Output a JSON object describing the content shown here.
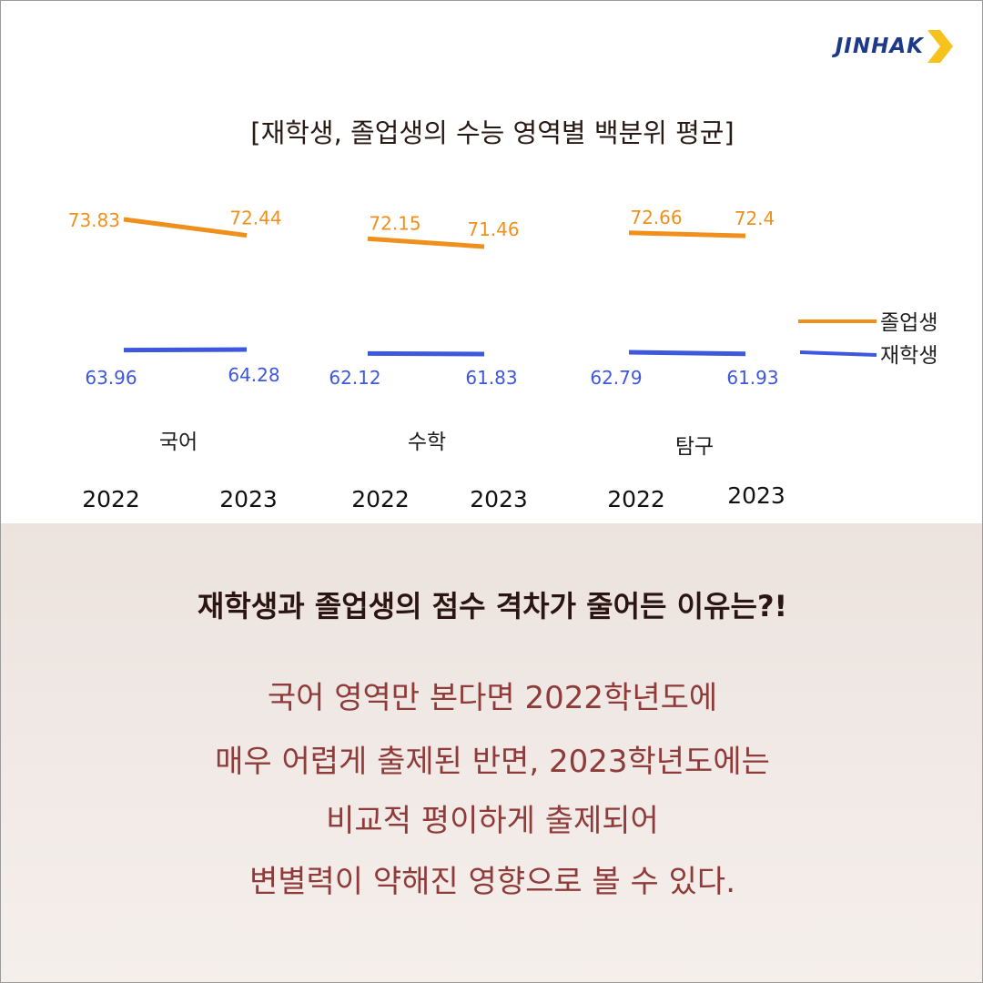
{
  "brand": {
    "logo_text": "JINHAK",
    "arrow_color": "#f7c21b",
    "text_color": "#1d3a8a"
  },
  "chart_data": {
    "type": "line",
    "title": "[재학생, 졸업생의 수능 영역별 백분위 평균]",
    "series_colors": {
      "졸업생": "#f0901c",
      "재학생": "#3d57dd"
    },
    "legend": {
      "position": "right",
      "entries": [
        "졸업생",
        "재학생"
      ]
    },
    "grid": false,
    "panels": [
      {
        "subject": "국어",
        "categories": [
          "2022",
          "2023"
        ],
        "series": [
          {
            "name": "졸업생",
            "values": [
              73.83,
              72.44
            ],
            "labels": [
              "73.83",
              "72.44"
            ]
          },
          {
            "name": "재학생",
            "values": [
              63.96,
              64.28
            ],
            "labels": [
              "63.96",
              "64.28"
            ]
          }
        ]
      },
      {
        "subject": "수학",
        "categories": [
          "2022",
          "2023"
        ],
        "series": [
          {
            "name": "졸업생",
            "values": [
              72.15,
              71.46
            ],
            "labels": [
              "72.15",
              "71.46"
            ]
          },
          {
            "name": "재학생",
            "values": [
              62.12,
              61.83
            ],
            "labels": [
              "62.12",
              "61.83"
            ]
          }
        ]
      },
      {
        "subject": "탐구",
        "categories": [
          "2022",
          "2023"
        ],
        "series": [
          {
            "name": "졸업생",
            "values": [
              72.66,
              72.4
            ],
            "labels": [
              "72.66",
              "72.4"
            ]
          },
          {
            "name": "재학생",
            "values": [
              62.79,
              61.93
            ],
            "labels": [
              "62.79",
              "61.93"
            ]
          }
        ]
      }
    ]
  },
  "bottom": {
    "question": "재학생과 졸업생의 점수 격차가 줄어든 이유는?!",
    "answer_lines": [
      "국어 영역만 본다면 2022학년도에",
      "매우 어렵게 출제된 반면, 2023학년도에는",
      "비교적 평이하게 출제되어",
      "변별력이 약해진 영향으로 볼 수 있다."
    ]
  }
}
